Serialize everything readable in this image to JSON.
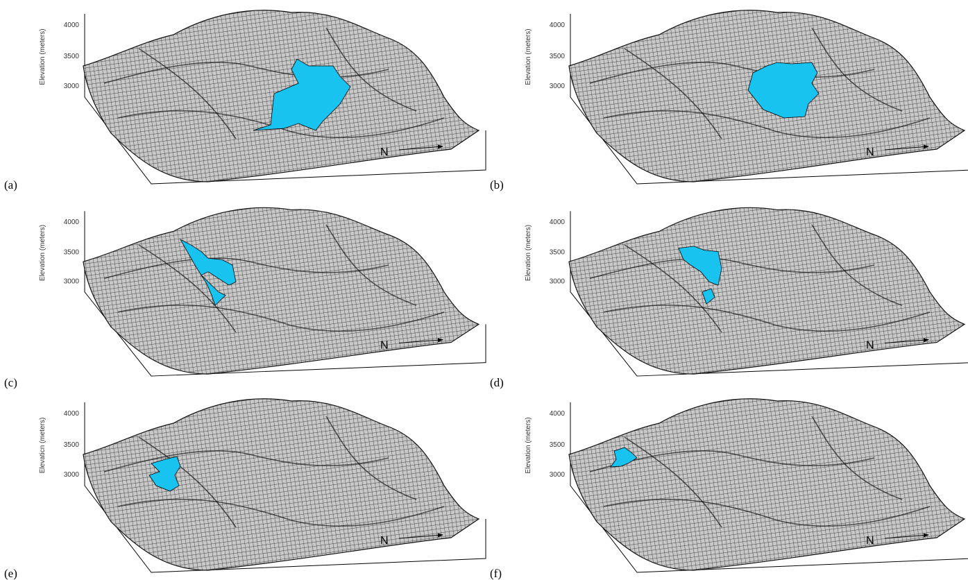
{
  "panels": [
    {
      "label": "(a)",
      "axis_title": "Elevation (meters)",
      "ticks": [
        4000,
        3500,
        3000
      ],
      "north": "N"
    },
    {
      "label": "(b)",
      "axis_title": "Elevation (meters)",
      "ticks": [
        4000,
        3500,
        3000
      ],
      "north": "N"
    },
    {
      "label": "(c)",
      "axis_title": "Elevation (meters)",
      "ticks": [
        4000,
        3500,
        3000
      ],
      "north": "N"
    },
    {
      "label": "(d)",
      "axis_title": "Elevation (meters)",
      "ticks": [
        4000,
        3500,
        3000
      ],
      "north": "N"
    },
    {
      "label": "(e)",
      "axis_title": "Elevaticn (meters)",
      "ticks": [
        4000,
        3500,
        3000
      ],
      "north": "N"
    },
    {
      "label": "(f)",
      "axis_title": "Elevation (meters)",
      "ticks": [
        4000,
        3500,
        3000
      ],
      "north": "N"
    }
  ]
}
